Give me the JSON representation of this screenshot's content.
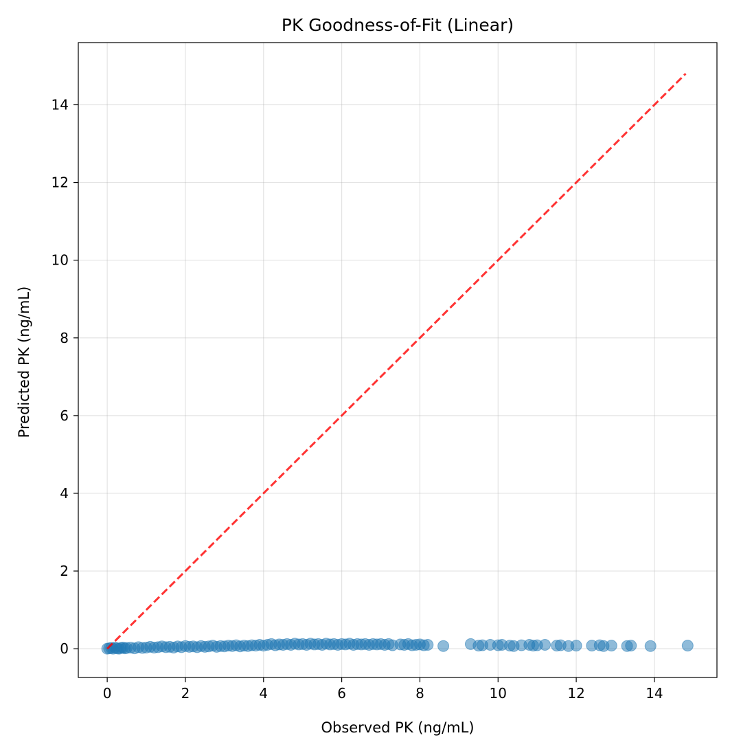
{
  "chart_data": {
    "type": "scatter",
    "title": "PK Goodness-of-Fit (Linear)",
    "xlabel": "Observed PK (ng/mL)",
    "ylabel": "Predicted PK (ng/mL)",
    "xlim": [
      -0.74,
      15.6
    ],
    "ylim": [
      -0.74,
      15.6
    ],
    "xticks": [
      0,
      2,
      4,
      6,
      8,
      10,
      12,
      14
    ],
    "yticks": [
      0,
      2,
      4,
      6,
      8,
      10,
      12,
      14
    ],
    "grid": true,
    "series": [
      {
        "kind": "scatter",
        "color": "#1f77b4",
        "alpha": 0.5,
        "points": [
          [
            0.0,
            0.0
          ],
          [
            0.05,
            0.01
          ],
          [
            0.1,
            0.02
          ],
          [
            0.15,
            0.0
          ],
          [
            0.2,
            0.03
          ],
          [
            0.25,
            0.01
          ],
          [
            0.3,
            0.0
          ],
          [
            0.35,
            0.02
          ],
          [
            0.4,
            0.03
          ],
          [
            0.45,
            0.01
          ],
          [
            0.5,
            0.02
          ],
          [
            0.6,
            0.03
          ],
          [
            0.7,
            0.01
          ],
          [
            0.8,
            0.04
          ],
          [
            0.9,
            0.02
          ],
          [
            1.0,
            0.03
          ],
          [
            1.1,
            0.05
          ],
          [
            1.2,
            0.03
          ],
          [
            1.3,
            0.04
          ],
          [
            1.4,
            0.06
          ],
          [
            1.5,
            0.04
          ],
          [
            1.6,
            0.05
          ],
          [
            1.7,
            0.03
          ],
          [
            1.8,
            0.06
          ],
          [
            1.9,
            0.04
          ],
          [
            2.0,
            0.07
          ],
          [
            2.1,
            0.05
          ],
          [
            2.2,
            0.06
          ],
          [
            2.3,
            0.04
          ],
          [
            2.4,
            0.07
          ],
          [
            2.5,
            0.05
          ],
          [
            2.6,
            0.06
          ],
          [
            2.7,
            0.08
          ],
          [
            2.8,
            0.05
          ],
          [
            2.9,
            0.07
          ],
          [
            3.0,
            0.06
          ],
          [
            3.1,
            0.08
          ],
          [
            3.2,
            0.07
          ],
          [
            3.3,
            0.09
          ],
          [
            3.4,
            0.06
          ],
          [
            3.5,
            0.08
          ],
          [
            3.6,
            0.07
          ],
          [
            3.7,
            0.09
          ],
          [
            3.8,
            0.08
          ],
          [
            3.9,
            0.1
          ],
          [
            4.0,
            0.08
          ],
          [
            4.1,
            0.1
          ],
          [
            4.2,
            0.12
          ],
          [
            4.3,
            0.09
          ],
          [
            4.4,
            0.11
          ],
          [
            4.5,
            0.1
          ],
          [
            4.6,
            0.12
          ],
          [
            4.7,
            0.1
          ],
          [
            4.8,
            0.13
          ],
          [
            4.9,
            0.11
          ],
          [
            5.0,
            0.12
          ],
          [
            5.1,
            0.1
          ],
          [
            5.2,
            0.13
          ],
          [
            5.3,
            0.11
          ],
          [
            5.4,
            0.12
          ],
          [
            5.5,
            0.1
          ],
          [
            5.6,
            0.13
          ],
          [
            5.7,
            0.11
          ],
          [
            5.8,
            0.12
          ],
          [
            5.9,
            0.1
          ],
          [
            6.0,
            0.12
          ],
          [
            6.1,
            0.11
          ],
          [
            6.2,
            0.13
          ],
          [
            6.3,
            0.1
          ],
          [
            6.4,
            0.12
          ],
          [
            6.5,
            0.11
          ],
          [
            6.6,
            0.12
          ],
          [
            6.7,
            0.1
          ],
          [
            6.8,
            0.12
          ],
          [
            6.9,
            0.11
          ],
          [
            7.0,
            0.12
          ],
          [
            7.1,
            0.1
          ],
          [
            7.2,
            0.12
          ],
          [
            7.3,
            0.09
          ],
          [
            7.5,
            0.11
          ],
          [
            7.6,
            0.1
          ],
          [
            7.7,
            0.12
          ],
          [
            7.8,
            0.09
          ],
          [
            7.9,
            0.1
          ],
          [
            8.0,
            0.11
          ],
          [
            8.1,
            0.09
          ],
          [
            8.2,
            0.1
          ],
          [
            8.6,
            0.07
          ],
          [
            9.3,
            0.12
          ],
          [
            9.5,
            0.08
          ],
          [
            9.6,
            0.09
          ],
          [
            9.8,
            0.1
          ],
          [
            10.0,
            0.09
          ],
          [
            10.1,
            0.1
          ],
          [
            10.3,
            0.08
          ],
          [
            10.4,
            0.07
          ],
          [
            10.6,
            0.09
          ],
          [
            10.8,
            0.1
          ],
          [
            10.9,
            0.08
          ],
          [
            11.0,
            0.09
          ],
          [
            11.2,
            0.1
          ],
          [
            11.5,
            0.08
          ],
          [
            11.6,
            0.09
          ],
          [
            11.8,
            0.07
          ],
          [
            12.0,
            0.08
          ],
          [
            12.4,
            0.08
          ],
          [
            12.6,
            0.09
          ],
          [
            12.7,
            0.07
          ],
          [
            12.9,
            0.08
          ],
          [
            13.3,
            0.07
          ],
          [
            13.4,
            0.08
          ],
          [
            13.9,
            0.07
          ],
          [
            14.85,
            0.08
          ]
        ]
      },
      {
        "kind": "line",
        "style": "dashed",
        "color": "#ff0000",
        "alpha": 0.8,
        "points": [
          [
            0,
            0
          ],
          [
            14.8,
            14.8
          ]
        ]
      }
    ]
  }
}
